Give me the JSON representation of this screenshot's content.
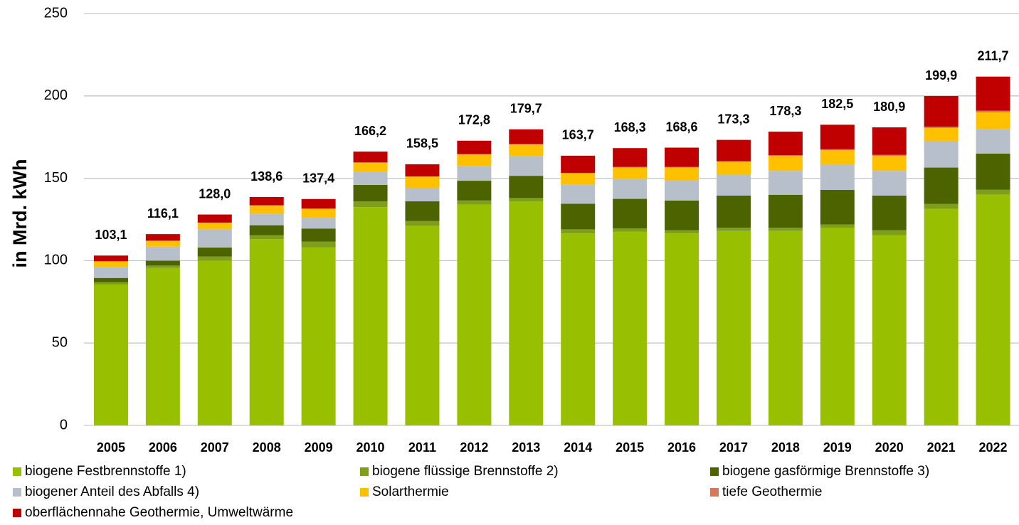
{
  "chart_data": {
    "type": "stacked_bar",
    "y_label": "in Mrd. kWh",
    "categories": [
      "2005",
      "2006",
      "2007",
      "2008",
      "2009",
      "2010",
      "2011",
      "2012",
      "2013",
      "2014",
      "2015",
      "2016",
      "2017",
      "2018",
      "2019",
      "2020",
      "2021",
      "2022"
    ],
    "series": [
      {
        "name": "biogene Festbrennstoffe 1)",
        "color": "#99c000",
        "values": [
          85.5,
          95.5,
          100,
          113,
          108,
          132.5,
          121,
          134,
          136,
          116.5,
          117.5,
          116.5,
          118,
          118,
          120,
          115.5,
          131.5,
          140
        ]
      },
      {
        "name": "biogene flüssige Brennstoffe 2)",
        "color": "#7f9f1c",
        "values": [
          1.5,
          1.5,
          2.5,
          2.5,
          3.5,
          3.5,
          3,
          2.5,
          2,
          2.5,
          2,
          2,
          2,
          2,
          2,
          3,
          3,
          3
        ]
      },
      {
        "name": "biogene gasförmige Brennstoffe 3)",
        "color": "#4d6300",
        "values": [
          2.5,
          3,
          5.5,
          6,
          8,
          10,
          12,
          12,
          13.5,
          15.5,
          18,
          18,
          19.5,
          20,
          21,
          21,
          22,
          22
        ]
      },
      {
        "name": "biogener Anteil des Abfalls 4)",
        "color": "#b7c0ca",
        "values": [
          6.5,
          8.5,
          11,
          7,
          6.5,
          8,
          8,
          9,
          12,
          11.5,
          12,
          12,
          12.5,
          14.5,
          15.5,
          15,
          16,
          15
        ]
      },
      {
        "name": "Solarthermie",
        "color": "#ffc000",
        "values": [
          3.5,
          3.5,
          4,
          5,
          5.5,
          5.5,
          7,
          7,
          7,
          7,
          7,
          8,
          8,
          9,
          8.5,
          9,
          8,
          10
        ]
      },
      {
        "name": "tiefe Geothermie",
        "color": "#d9775a",
        "values": [
          0.1,
          0.1,
          0.1,
          0.1,
          0.1,
          0.1,
          0.1,
          0.2,
          0.3,
          0.3,
          0.4,
          0.4,
          0.4,
          0.5,
          0.6,
          0.7,
          0.8,
          1
        ]
      },
      {
        "name": "oberflächennahe Geothermie, Umweltwärme",
        "color": "#c00000",
        "values": [
          3.5,
          4,
          4.9,
          5,
          5.8,
          6.6,
          7.4,
          8.1,
          8.9,
          10.4,
          11.4,
          11.7,
          12.9,
          14.3,
          14.9,
          16.7,
          18.6,
          20.7
        ]
      }
    ],
    "totals": [
      103.1,
      116.1,
      128.0,
      138.6,
      137.4,
      166.2,
      158.5,
      172.8,
      179.7,
      163.7,
      168.3,
      168.6,
      173.3,
      178.3,
      182.5,
      180.9,
      199.9,
      211.7
    ],
    "total_labels": [
      "103,1",
      "116,1",
      "128,0",
      "138,6",
      "137,4",
      "166,2",
      "158,5",
      "172,8",
      "179,7",
      "163,7",
      "168,3",
      "168,6",
      "173,3",
      "178,3",
      "182,5",
      "180,9",
      "199,9",
      "211,7"
    ],
    "ylim": [
      0,
      250
    ],
    "yticks": [
      0,
      50,
      100,
      150,
      200,
      250
    ],
    "grid": true
  }
}
